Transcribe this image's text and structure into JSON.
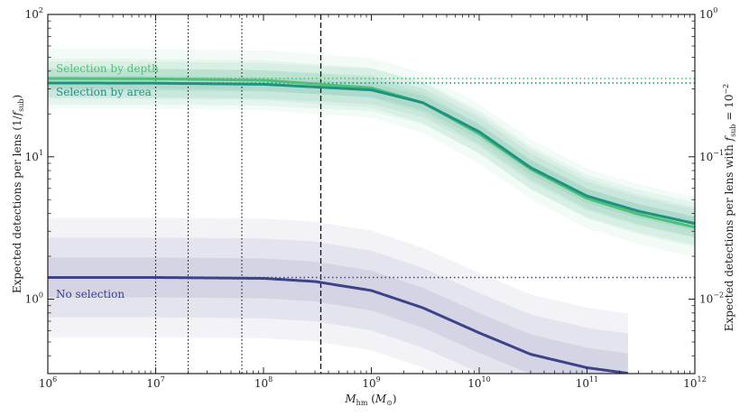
{
  "chart_data": {
    "type": "line",
    "xscale": "log",
    "yscale": "log",
    "xlim": [
      1000000.0,
      1000000000000.0
    ],
    "ylim": [
      0.3,
      100
    ],
    "ylim_right": [
      0.003,
      1
    ],
    "xlabel": "M_hm (M_⊙)",
    "ylabel": "Expected detections per lens (1/f_sub)",
    "ylabel_right": "Expected detections per lens with f_sub = 10^-2",
    "x_ticks": [
      {
        "value": 1000000.0,
        "base": "10",
        "exp": "6"
      },
      {
        "value": 10000000.0,
        "base": "10",
        "exp": "7"
      },
      {
        "value": 100000000.0,
        "base": "10",
        "exp": "8"
      },
      {
        "value": 1000000000.0,
        "base": "10",
        "exp": "9"
      },
      {
        "value": 10000000000.0,
        "base": "10",
        "exp": "10"
      },
      {
        "value": 100000000000.0,
        "base": "10",
        "exp": "11"
      },
      {
        "value": 1000000000000.0,
        "base": "10",
        "exp": "12"
      }
    ],
    "y_ticks_left": [
      {
        "value": 1,
        "base": "10",
        "exp": "0"
      },
      {
        "value": 10,
        "base": "10",
        "exp": "1"
      },
      {
        "value": 100,
        "base": "10",
        "exp": "2"
      }
    ],
    "y_ticks_right": [
      {
        "value": 0.01,
        "base": "10",
        "exp": "−2"
      },
      {
        "value": 0.1,
        "base": "10",
        "exp": "−1"
      },
      {
        "value": 1,
        "base": "10",
        "exp": "0"
      }
    ],
    "vertical_lines": [
      {
        "x": 10000000.0,
        "style": "dotted"
      },
      {
        "x": 20000000.0,
        "style": "dotted"
      },
      {
        "x": 63000000.0,
        "style": "dotted"
      },
      {
        "x": 340000000.0,
        "style": "dashed"
      }
    ],
    "series": [
      {
        "name": "Selection by depth",
        "color": "#4cc277",
        "plateau": 35.5,
        "band_width": 0.07,
        "points": [
          [
            1000000.0,
            35.5
          ],
          [
            10000000.0,
            35.3
          ],
          [
            100000000.0,
            34.5
          ],
          [
            1000000000.0,
            30.5
          ],
          [
            3000000000.0,
            24.0
          ],
          [
            10000000000.0,
            14.5
          ],
          [
            30000000000.0,
            8.2
          ],
          [
            100000000000.0,
            5.1
          ],
          [
            300000000000.0,
            3.95
          ],
          [
            1000000000000.0,
            3.2
          ]
        ]
      },
      {
        "name": "Selection by area",
        "color": "#1f9282",
        "plateau": 33.0,
        "band_width": 0.05,
        "points": [
          [
            1000000.0,
            33.0
          ],
          [
            10000000.0,
            32.9
          ],
          [
            100000000.0,
            32.3
          ],
          [
            1000000000.0,
            29.5
          ],
          [
            3000000000.0,
            24.0
          ],
          [
            10000000000.0,
            15.0
          ],
          [
            30000000000.0,
            8.4
          ],
          [
            100000000000.0,
            5.3
          ],
          [
            300000000000.0,
            4.15
          ],
          [
            1000000000000.0,
            3.4
          ]
        ]
      },
      {
        "name": "No selection",
        "color": "#3c4389",
        "plateau": 1.42,
        "band_width": 0.14,
        "points": [
          [
            1000000.0,
            1.42
          ],
          [
            10000000.0,
            1.42
          ],
          [
            100000000.0,
            1.4
          ],
          [
            300000000.0,
            1.33
          ],
          [
            1000000000.0,
            1.15
          ],
          [
            3000000000.0,
            0.87
          ],
          [
            10000000000.0,
            0.58
          ],
          [
            30000000000.0,
            0.41
          ],
          [
            100000000000.0,
            0.33
          ],
          [
            250000000000.0,
            0.3
          ]
        ]
      }
    ]
  }
}
